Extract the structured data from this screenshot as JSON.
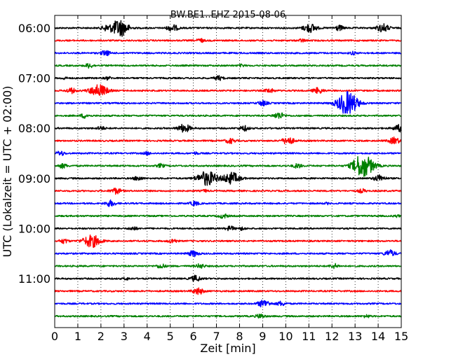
{
  "chart_data": {
    "type": "line",
    "title": "BW.BE1..EHZ 2015-08-06",
    "xlabel": "Zeit  [min]",
    "ylabel": "UTC (Lokalzeit = UTC + 02:00)",
    "xlim": [
      0,
      15
    ],
    "x_ticks": [
      "0",
      "1",
      "2",
      "3",
      "4",
      "5",
      "6",
      "7",
      "8",
      "9",
      "10",
      "11",
      "12",
      "13",
      "14",
      "15"
    ],
    "y_tick_labels": [
      "06:00",
      "07:00",
      "08:00",
      "09:00",
      "10:00",
      "11:00"
    ],
    "y_tick_trace_index": [
      0,
      4,
      8,
      12,
      16,
      20
    ],
    "grid": "vertical dotted at each minute",
    "trace_colors": [
      "#000000",
      "#ff0000",
      "#0000ff",
      "#008000"
    ],
    "traces": [
      {
        "start": "06:00",
        "events": [
          [
            2.2,
            0.3
          ],
          [
            2.7,
            0.8
          ],
          [
            2.95,
            0.6
          ],
          [
            5.1,
            0.45
          ],
          [
            11.05,
            0.6
          ],
          [
            12.3,
            0.35
          ],
          [
            14.2,
            0.55
          ]
        ]
      },
      {
        "start": "06:15",
        "events": [
          [
            6.3,
            0.25
          ],
          [
            10.7,
            0.2
          ]
        ]
      },
      {
        "start": "06:30",
        "events": [
          [
            2.2,
            0.35
          ],
          [
            12.9,
            0.2
          ]
        ]
      },
      {
        "start": "06:45",
        "events": [
          [
            1.5,
            0.3
          ],
          [
            8.1,
            0.15
          ]
        ]
      },
      {
        "start": "07:00",
        "events": [
          [
            0.4,
            0.15
          ],
          [
            2.3,
            0.2
          ],
          [
            7.1,
            0.3
          ]
        ]
      },
      {
        "start": "07:15",
        "events": [
          [
            0.7,
            0.35
          ],
          [
            1.9,
            0.85
          ],
          [
            9.3,
            0.3
          ],
          [
            11.4,
            0.4
          ]
        ]
      },
      {
        "start": "07:30",
        "events": [
          [
            9.0,
            0.35
          ],
          [
            12.55,
            0.9
          ],
          [
            12.8,
            0.9
          ]
        ]
      },
      {
        "start": "07:45",
        "events": [
          [
            1.3,
            0.3
          ],
          [
            9.7,
            0.45
          ]
        ]
      },
      {
        "start": "08:00",
        "events": [
          [
            2.0,
            0.25
          ],
          [
            5.6,
            0.55
          ],
          [
            8.2,
            0.35
          ],
          [
            14.9,
            0.45
          ]
        ]
      },
      {
        "start": "08:15",
        "events": [
          [
            7.6,
            0.35
          ],
          [
            10.1,
            0.5
          ],
          [
            14.7,
            0.45
          ]
        ]
      },
      {
        "start": "08:30",
        "events": [
          [
            0.25,
            0.3
          ],
          [
            4.0,
            0.2
          ],
          [
            6.1,
            0.15
          ]
        ]
      },
      {
        "start": "08:45",
        "events": [
          [
            0.35,
            0.3
          ],
          [
            4.6,
            0.25
          ],
          [
            10.5,
            0.3
          ],
          [
            13.2,
            0.8
          ],
          [
            13.45,
            1.0
          ]
        ]
      },
      {
        "start": "09:00",
        "events": [
          [
            3.6,
            0.3
          ],
          [
            6.6,
            1.0
          ],
          [
            7.65,
            0.8
          ],
          [
            14.05,
            0.45
          ]
        ]
      },
      {
        "start": "09:15",
        "events": [
          [
            2.65,
            0.4
          ],
          [
            6.5,
            0.15
          ],
          [
            13.3,
            0.25
          ]
        ]
      },
      {
        "start": "09:30",
        "events": [
          [
            2.4,
            0.4
          ],
          [
            6.05,
            0.3
          ],
          [
            11.8,
            0.1
          ]
        ]
      },
      {
        "start": "09:45",
        "events": [
          [
            7.3,
            0.3
          ],
          [
            14.8,
            0.15
          ]
        ]
      },
      {
        "start": "10:00",
        "events": [
          [
            3.4,
            0.25
          ],
          [
            7.6,
            0.3
          ],
          [
            8.1,
            0.2
          ]
        ]
      },
      {
        "start": "10:15",
        "events": [
          [
            0.4,
            0.3
          ],
          [
            1.6,
            0.85
          ],
          [
            5.1,
            0.3
          ]
        ]
      },
      {
        "start": "10:30",
        "events": [
          [
            6.0,
            0.4
          ],
          [
            14.5,
            0.45
          ]
        ]
      },
      {
        "start": "10:45",
        "events": [
          [
            4.6,
            0.3
          ],
          [
            6.3,
            0.3
          ],
          [
            12.1,
            0.3
          ]
        ]
      },
      {
        "start": "11:00",
        "events": [
          [
            6.1,
            0.4
          ],
          [
            3.1,
            0.15
          ]
        ]
      },
      {
        "start": "11:15",
        "events": [
          [
            6.2,
            0.45
          ]
        ]
      },
      {
        "start": "11:30",
        "events": [
          [
            9.05,
            0.5
          ],
          [
            9.8,
            0.3
          ]
        ]
      },
      {
        "start": "11:45",
        "events": [
          [
            8.9,
            0.3
          ],
          [
            13.5,
            0.2
          ]
        ]
      }
    ]
  }
}
